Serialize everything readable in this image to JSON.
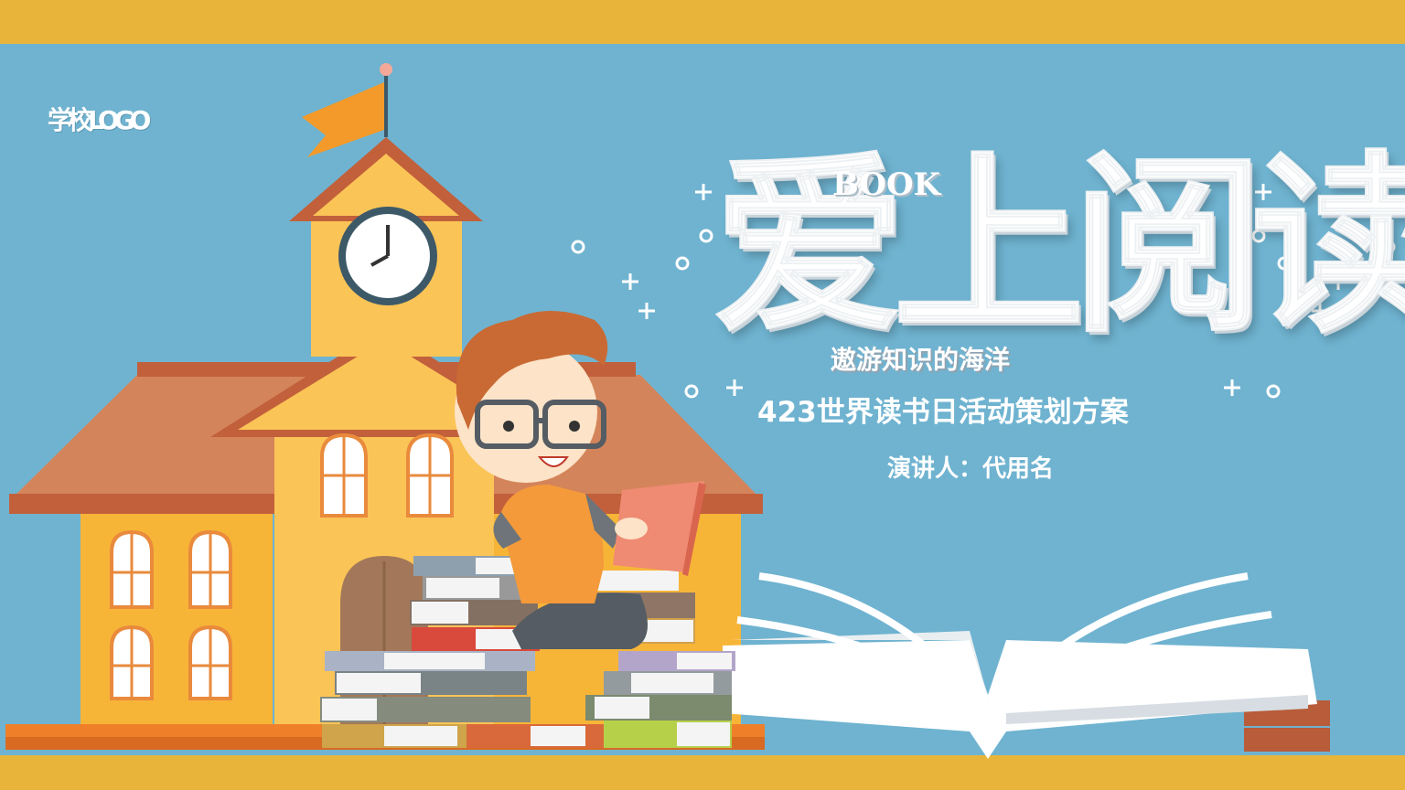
{
  "slide": {
    "school_logo": "学校LOGO",
    "title": "爱上阅读",
    "book_word": "BOOK",
    "subtitle": "遨游知识的海洋",
    "event_title": "423世界读书日活动策划方案",
    "speaker": "演讲人：代用名"
  },
  "colors": {
    "background": "#6fb3d0",
    "band": "#e8b53a",
    "building": "#f7b538",
    "roof": "#d4845a",
    "flag": "#f49a2a"
  },
  "icons": [
    "flag-icon",
    "clock-icon",
    "sparkle-icon",
    "ring-icon"
  ]
}
